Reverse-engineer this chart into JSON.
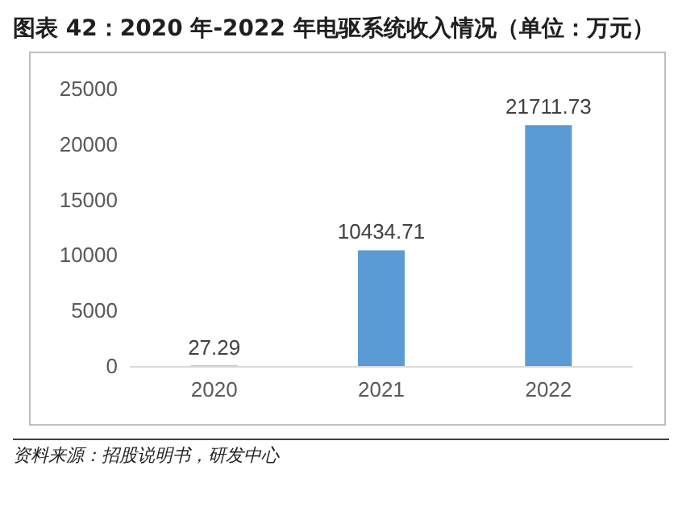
{
  "chart_data": {
    "type": "bar",
    "title": "图表 42：2020 年-2022 年电驱系统收入情况（单位：万元）",
    "categories": [
      "2020",
      "2021",
      "2022"
    ],
    "values": [
      27.29,
      10434.71,
      21711.73
    ],
    "color": "#5b9bd5",
    "ylim": [
      0,
      25000
    ],
    "yticks": [
      0,
      5000,
      10000,
      15000,
      20000,
      25000
    ],
    "grid": false,
    "data_labels": true,
    "annotations": [
      "资料来源：招股说明书，研发中心"
    ]
  }
}
